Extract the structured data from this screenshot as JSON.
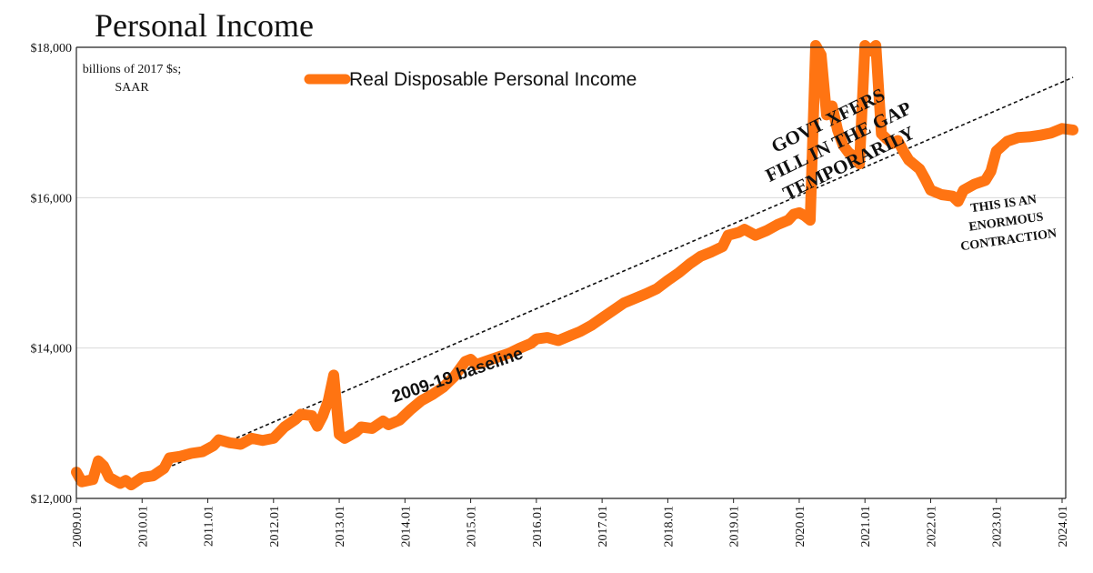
{
  "chart_data": {
    "type": "line",
    "title": "Personal Income",
    "units_note": [
      "billions of 2017 $s;",
      "SAAR"
    ],
    "ylim": [
      12000,
      18000
    ],
    "y_ticks": [
      {
        "value": 12000,
        "label": "$12,000"
      },
      {
        "value": 14000,
        "label": "$14,000"
      },
      {
        "value": 16000,
        "label": "$16,000"
      },
      {
        "value": 18000,
        "label": "$18,000"
      }
    ],
    "x_range": [
      "2009.01",
      "2024.01"
    ],
    "x_ticks": [
      "2009.01",
      "2010.01",
      "2011.01",
      "2012.01",
      "2013.01",
      "2014.01",
      "2015.01",
      "2016.01",
      "2017.01",
      "2018.01",
      "2019.01",
      "2020.01",
      "2021.01",
      "2022.01",
      "2023.01",
      "2024.01"
    ],
    "grid": true,
    "legend_position": "top-center",
    "series": [
      {
        "name": "Real Disposable Personal Income",
        "color": "#ff7412",
        "points": [
          [
            "2009.01",
            12350
          ],
          [
            "2009.02",
            12220
          ],
          [
            "2009.04",
            12250
          ],
          [
            "2009.05",
            12500
          ],
          [
            "2009.06",
            12430
          ],
          [
            "2009.07",
            12280
          ],
          [
            "2009.09",
            12200
          ],
          [
            "2009.10",
            12240
          ],
          [
            "2009.11",
            12180
          ],
          [
            "2010.01",
            12280
          ],
          [
            "2010.03",
            12300
          ],
          [
            "2010.05",
            12400
          ],
          [
            "2010.06",
            12540
          ],
          [
            "2010.08",
            12560
          ],
          [
            "2010.10",
            12600
          ],
          [
            "2010.12",
            12620
          ],
          [
            "2011.02",
            12700
          ],
          [
            "2011.03",
            12780
          ],
          [
            "2011.05",
            12740
          ],
          [
            "2011.07",
            12720
          ],
          [
            "2011.09",
            12800
          ],
          [
            "2011.11",
            12770
          ],
          [
            "2012.01",
            12800
          ],
          [
            "2012.03",
            12950
          ],
          [
            "2012.05",
            13050
          ],
          [
            "2012.06",
            13120
          ],
          [
            "2012.08",
            13100
          ],
          [
            "2012.09",
            12960
          ],
          [
            "2012.10",
            13100
          ],
          [
            "2012.11",
            13300
          ],
          [
            "2012.12",
            13640
          ],
          [
            "2013.01",
            12850
          ],
          [
            "2013.02",
            12800
          ],
          [
            "2013.04",
            12880
          ],
          [
            "2013.05",
            12950
          ],
          [
            "2013.07",
            12930
          ],
          [
            "2013.09",
            13030
          ],
          [
            "2013.10",
            12980
          ],
          [
            "2013.12",
            13040
          ],
          [
            "2014.02",
            13180
          ],
          [
            "2014.04",
            13300
          ],
          [
            "2014.06",
            13380
          ],
          [
            "2014.08",
            13480
          ],
          [
            "2014.10",
            13620
          ],
          [
            "2014.12",
            13820
          ],
          [
            "2015.01",
            13850
          ],
          [
            "2015.02",
            13780
          ],
          [
            "2015.04",
            13830
          ],
          [
            "2015.06",
            13880
          ],
          [
            "2015.08",
            13930
          ],
          [
            "2015.10",
            14000
          ],
          [
            "2015.12",
            14060
          ],
          [
            "2016.01",
            14120
          ],
          [
            "2016.03",
            14140
          ],
          [
            "2016.05",
            14100
          ],
          [
            "2016.07",
            14160
          ],
          [
            "2016.09",
            14220
          ],
          [
            "2016.11",
            14300
          ],
          [
            "2017.01",
            14400
          ],
          [
            "2017.03",
            14500
          ],
          [
            "2017.05",
            14600
          ],
          [
            "2017.07",
            14660
          ],
          [
            "2017.09",
            14720
          ],
          [
            "2017.11",
            14790
          ],
          [
            "2018.01",
            14900
          ],
          [
            "2018.03",
            15000
          ],
          [
            "2018.05",
            15120
          ],
          [
            "2018.07",
            15220
          ],
          [
            "2018.09",
            15280
          ],
          [
            "2018.11",
            15350
          ],
          [
            "2018.12",
            15500
          ],
          [
            "2019.02",
            15540
          ],
          [
            "2019.03",
            15580
          ],
          [
            "2019.05",
            15500
          ],
          [
            "2019.07",
            15560
          ],
          [
            "2019.09",
            15640
          ],
          [
            "2019.11",
            15700
          ],
          [
            "2019.12",
            15780
          ],
          [
            "2020.01",
            15800
          ],
          [
            "2020.02",
            15760
          ],
          [
            "2020.03",
            15700
          ],
          [
            "2020.04",
            18100
          ],
          [
            "2020.05",
            17900
          ],
          [
            "2020.06",
            17100
          ],
          [
            "2020.07",
            17220
          ],
          [
            "2020.08",
            16900
          ],
          [
            "2020.09",
            16700
          ],
          [
            "2020.10",
            16600
          ],
          [
            "2020.11",
            16550
          ],
          [
            "2020.12",
            16450
          ],
          [
            "2021.01",
            18050
          ],
          [
            "2021.02",
            17950
          ],
          [
            "2021.03",
            18150
          ],
          [
            "2021.04",
            16850
          ],
          [
            "2021.05",
            16780
          ],
          [
            "2021.06",
            16720
          ],
          [
            "2021.07",
            16760
          ],
          [
            "2021.08",
            16620
          ],
          [
            "2021.09",
            16500
          ],
          [
            "2021.11",
            16380
          ],
          [
            "2021.12",
            16250
          ],
          [
            "2022.01",
            16100
          ],
          [
            "2022.03",
            16040
          ],
          [
            "2022.05",
            16020
          ],
          [
            "2022.06",
            15950
          ],
          [
            "2022.07",
            16100
          ],
          [
            "2022.09",
            16180
          ],
          [
            "2022.11",
            16230
          ],
          [
            "2022.12",
            16350
          ],
          [
            "2023.01",
            16620
          ],
          [
            "2023.03",
            16750
          ],
          [
            "2023.05",
            16800
          ],
          [
            "2023.07",
            16810
          ],
          [
            "2023.09",
            16830
          ],
          [
            "2023.11",
            16860
          ],
          [
            "2024.01",
            16920
          ],
          [
            "2024.03",
            16900
          ]
        ]
      }
    ],
    "baseline": {
      "label": "2009-19 baseline",
      "from": [
        "2009.11",
        12200
      ],
      "to": [
        "2024.03",
        17600
      ]
    },
    "annotations": {
      "govt": [
        "GOVT XFERS",
        "FILL IN THE GAP",
        "TEMPORARILY"
      ],
      "contraction": [
        "THIS IS AN",
        "ENORMOUS",
        "CONTRACTION"
      ]
    }
  }
}
